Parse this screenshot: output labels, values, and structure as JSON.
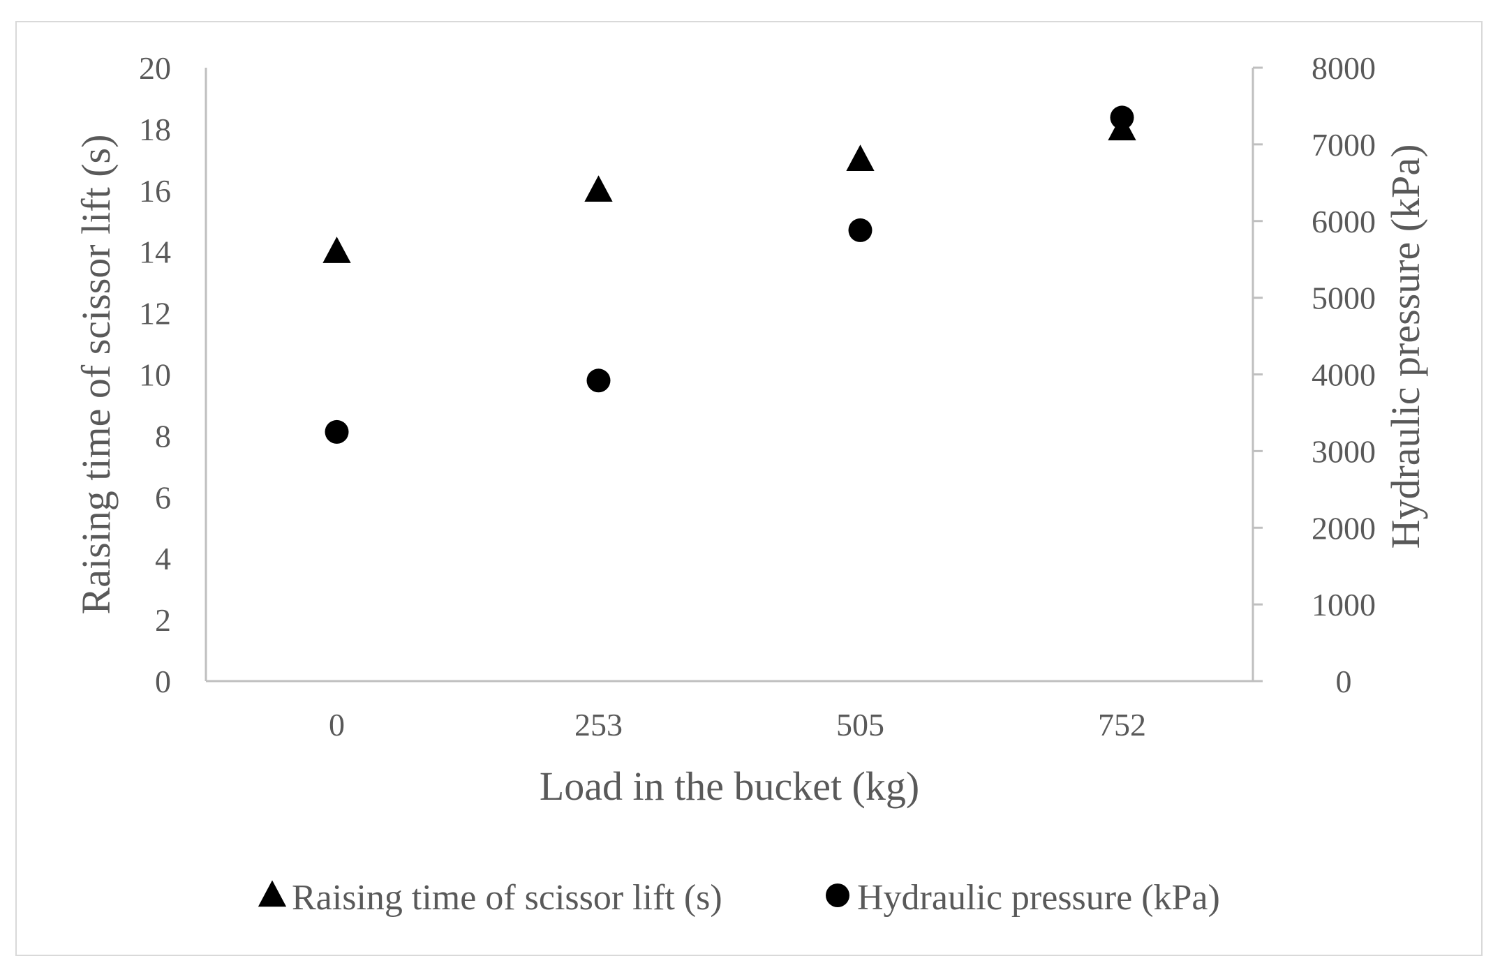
{
  "chart_data": {
    "type": "scatter",
    "title": "",
    "x_categories": [
      "0",
      "253",
      "505",
      "752"
    ],
    "xlabel": "Load in the bucket (kg)",
    "ylabel_left": "Raising time of scissor lift (s)",
    "ylabel_right": "Hydraulic pressure (kPa)",
    "ylim_left": [
      0,
      20
    ],
    "ylim_right": [
      0,
      8000
    ],
    "yticks_left": [
      "0",
      "2",
      "4",
      "6",
      "8",
      "10",
      "12",
      "14",
      "16",
      "18",
      "20"
    ],
    "yticks_right": [
      "0",
      "1000",
      "2000",
      "3000",
      "4000",
      "5000",
      "6000",
      "7000",
      "8000"
    ],
    "grid": false,
    "legend_position": "bottom",
    "series": [
      {
        "name": "Raising time of scissor lift (s)",
        "axis": "left",
        "marker": "triangle",
        "color": "#000000",
        "values": [
          14,
          16,
          17,
          18
        ]
      },
      {
        "name": "Hydraulic pressure (kPa)",
        "axis": "right",
        "marker": "circle",
        "color": "#000000",
        "values": [
          3250,
          3920,
          5880,
          7350
        ]
      }
    ]
  }
}
